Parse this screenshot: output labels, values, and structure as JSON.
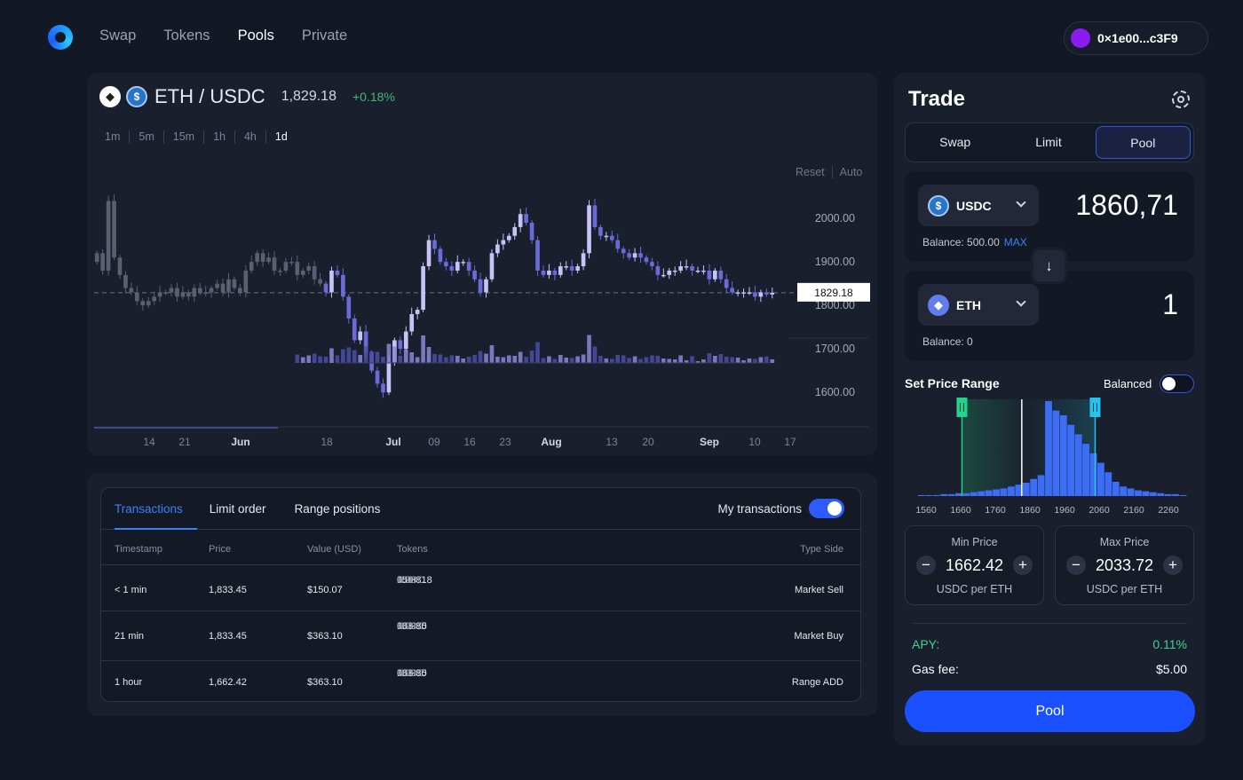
{
  "nav": {
    "items": [
      {
        "label": "Swap",
        "active": false
      },
      {
        "label": "Tokens",
        "active": false
      },
      {
        "label": "Pools",
        "active": true
      },
      {
        "label": "Private",
        "active": false
      }
    ],
    "wallet_address": "0×1e00...c3F9",
    "wallet_color": "#8a1cf0"
  },
  "chart": {
    "pair": "ETH / USDC",
    "price": "1,829.18",
    "change": "+0.18%",
    "timeframes": [
      "1m",
      "5m",
      "15m",
      "1h",
      "4h",
      "1d"
    ],
    "active_timeframe": "1d",
    "reset_label": "Reset",
    "auto_label": "Auto",
    "current_price_label": "1829.18"
  },
  "chart_data": {
    "type": "candlestick",
    "y_ticks": [
      "2000.00",
      "1900.00",
      "1800.00",
      "1700.00",
      "1600.00"
    ],
    "ylim": [
      1580,
      2090
    ],
    "x_ticks": [
      "14",
      "21",
      "Jun",
      "18",
      "Jul",
      "09",
      "16",
      "23",
      "Aug",
      "13",
      "20",
      "Sep",
      "10",
      "17"
    ],
    "current_price": 1829.18,
    "up_color": "#c7c3f6",
    "down_color": "#6a6ad8",
    "close": [
      1920,
      1880,
      2040,
      1910,
      1870,
      1840,
      1830,
      1810,
      1800,
      1810,
      1820,
      1830,
      1830,
      1840,
      1820,
      1830,
      1820,
      1840,
      1830,
      1830,
      1840,
      1850,
      1830,
      1860,
      1840,
      1830,
      1880,
      1900,
      1920,
      1900,
      1910,
      1880,
      1880,
      1900,
      1900,
      1870,
      1880,
      1890,
      1860,
      1850,
      1830,
      1880,
      1870,
      1820,
      1770,
      1720,
      1740,
      1690,
      1650,
      1620,
      1600,
      1670,
      1720,
      1700,
      1740,
      1780,
      1790,
      1890,
      1950,
      1930,
      1900,
      1890,
      1880,
      1900,
      1900,
      1880,
      1860,
      1830,
      1860,
      1920,
      1940,
      1950,
      1960,
      1980,
      2010,
      1990,
      1950,
      1880,
      1870,
      1880,
      1870,
      1890,
      1890,
      1880,
      1890,
      1920,
      2030,
      1980,
      1960,
      1960,
      1950,
      1930,
      1920,
      1910,
      1920,
      1910,
      1900,
      1890,
      1870,
      1870,
      1880,
      1880,
      1890,
      1890,
      1880,
      1880,
      1880,
      1860,
      1880,
      1860,
      1840,
      1830,
      1830,
      1830,
      1830,
      1820,
      1830,
      1825,
      1829
    ],
    "volume_scale_note": ""
  },
  "transactions": {
    "tabs": [
      "Transactions",
      "Limit order",
      "Range positions"
    ],
    "active_tab": "Transactions",
    "my_transactions_label": "My transactions",
    "headers": {
      "timestamp": "Timestamp",
      "price": "Price",
      "value": "Value (USD)",
      "tokens": "Tokens",
      "type": "Type Side"
    },
    "rows": [
      {
        "timestamp": "< 1 min",
        "price": "1,833.45",
        "value": "$150.07",
        "amt1": "150",
        "unit1": "ETH",
        "amt2": "0.03818",
        "unit2": "USDC",
        "type": "Market Sell"
      },
      {
        "timestamp": "21 min",
        "price": "1,833.45",
        "value": "$363.10",
        "amt1": "0.0985",
        "unit1": "ETH",
        "amt2": "183.30",
        "unit2": "USDC",
        "type": "Market Buy"
      },
      {
        "timestamp": "1 hour",
        "price": "1,662.42",
        "value": "$363.10",
        "amt1": "0.0985",
        "unit1": "ETH",
        "amt2": "183.30",
        "unit2": "USDC",
        "type": "Range ADD"
      }
    ]
  },
  "trade": {
    "title": "Trade",
    "modes": [
      "Swap",
      "Limit",
      "Pool"
    ],
    "active_mode": "Pool",
    "from": {
      "token": "USDC",
      "amount": "1860,71",
      "balance": "Balance: 500.00",
      "max_label": "MAX"
    },
    "to": {
      "token": "ETH",
      "amount": "1",
      "balance": "Balance: 0"
    },
    "set_price_range_label": "Set Price Range",
    "balanced_label": "Balanced",
    "histogram": {
      "x_ticks": [
        "1560",
        "1660",
        "1760",
        "1860",
        "1960",
        "2060",
        "2160",
        "2260"
      ],
      "values": [
        1,
        1,
        1,
        2,
        2,
        3,
        3,
        4,
        5,
        6,
        7,
        8,
        10,
        12,
        14,
        18,
        22,
        100,
        90,
        85,
        75,
        65,
        55,
        45,
        35,
        25,
        15,
        10,
        8,
        6,
        5,
        4,
        3,
        2,
        2,
        1
      ],
      "min_handle": 1662.42,
      "max_handle": 2033.72,
      "current": 1829.18,
      "bar_color": "#3d6cf5"
    },
    "min_price": {
      "label": "Min Price",
      "value": "1662.42",
      "unit": "USDC per ETH"
    },
    "max_price": {
      "label": "Max Price",
      "value": "2033.72",
      "unit": "USDC per ETH"
    },
    "apy_label": "APY:",
    "apy_value": "0.11%",
    "gas_label": "Gas fee:",
    "gas_value": "$5.00",
    "action_label": "Pool"
  }
}
